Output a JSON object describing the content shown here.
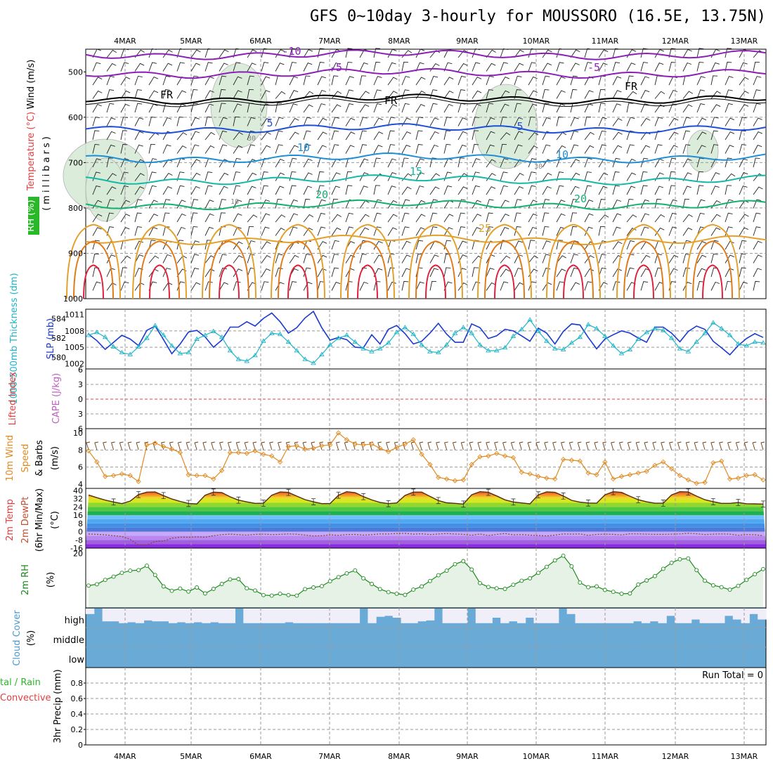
{
  "title": "GFS 0~10day 3-hourly for MOUSSORO (16.5E, 13.75N)",
  "dates": [
    "4MAR",
    "5MAR",
    "6MAR",
    "7MAR",
    "8MAR",
    "9MAR",
    "10MAR",
    "11MAR",
    "12MAR",
    "13MAR"
  ],
  "colors": {
    "purple": "#8b1fb8",
    "black": "#000000",
    "blue": "#1f4ed8",
    "lightblue": "#1f8fd8",
    "teal": "#13b8a8",
    "green": "#13b070",
    "orange": "#e3a02a",
    "darkorange": "#e07a18",
    "red": "#e0203a",
    "rhfill": "#d8ead8",
    "barb": "#000000"
  },
  "chart_data": [
    {
      "type": "line",
      "panel": "upper-air",
      "labels": {
        "wind": "Wind (m/s)",
        "temp": "Temperature (°C)",
        "rh": "RH (%)",
        "pressure": "(millibars)"
      },
      "ylabels": [
        "500",
        "600",
        "700",
        "800",
        "900",
        "1000"
      ],
      "ylim": [
        450,
        1000
      ],
      "contours": [
        {
          "name": "-10",
          "color": "purple",
          "values": [
            -10
          ]
        },
        {
          "name": "-5",
          "color": "purple",
          "values": [
            -5
          ]
        },
        {
          "name": "FR",
          "color": "black",
          "values": [
            0
          ]
        },
        {
          "name": "5",
          "color": "blue",
          "values": [
            5
          ]
        },
        {
          "name": "10",
          "color": "lightblue",
          "values": [
            10
          ]
        },
        {
          "name": "15",
          "color": "teal",
          "values": [
            15
          ]
        },
        {
          "name": "20",
          "color": "green",
          "values": [
            20
          ]
        },
        {
          "name": "25",
          "color": "orange",
          "values": [
            25
          ]
        }
      ],
      "contour_labels": [
        "-10",
        "-5",
        "-5",
        "FR",
        "FR",
        "FR",
        "5",
        "5",
        "10",
        "10",
        "15",
        "20",
        "20",
        "25",
        "30",
        "30",
        "10"
      ],
      "levels": {
        "-10": 462,
        "-5": 503,
        "FR": 560,
        "5": 625,
        "10": 690,
        "15": 738,
        "20": 793,
        "25": 870
      }
    },
    {
      "type": "line",
      "panel": "thickness-slp",
      "labels": {
        "thk": "1000-500mb Thickness (dm)",
        "slp": "SLP (mb)"
      },
      "left_ticks": [
        "584",
        "582",
        "580"
      ],
      "right_ticks": [
        "1011",
        "1008",
        "1005",
        "1002"
      ],
      "series": [
        {
          "name": "SLP",
          "color": "#1a3ad0",
          "values": [
            1007.4,
            1006.2,
            1004.6,
            1005.9,
            1007.2,
            1006.5,
            1005.3,
            1008.1,
            1008.9,
            1006.4,
            1003.8,
            1005.6,
            1007.8,
            1008.1,
            1006.9,
            1005.0,
            1006.3,
            1008.7,
            1008.7,
            1009.7,
            1008.9,
            1010.3,
            1011.3,
            1009.7,
            1007.6,
            1008.6,
            1010.4,
            1011.6,
            1008.6,
            1006.3,
            1006.8,
            1006.4,
            1005.0,
            1004.9,
            1007.3,
            1005.6,
            1008.3,
            1009.0,
            1007.5,
            1005.6,
            1006.1,
            1007.6,
            1009.4,
            1007.4,
            1005.9,
            1005.9,
            1009.3,
            1008.6,
            1006.6,
            1007.1,
            1008.3,
            1008.0,
            1007.1,
            1006.1,
            1008.5,
            1007.6,
            1005.6,
            1007.9,
            1009.3,
            1009.1,
            1006.8,
            1004.7,
            1006.5,
            1007.3,
            1008.0,
            1007.6,
            1006.7,
            1005.9,
            1008.7,
            1008.7,
            1007.6,
            1006.0,
            1007.9,
            1008.9,
            1008.3,
            1006.1,
            1004.9,
            1003.6,
            1005.3,
            1006.6,
            1007.5,
            1006.8
          ]
        },
        {
          "name": "Thickness",
          "color": "#20b5c8",
          "values": [
            582.3,
            582.6,
            582.1,
            581.1,
            580.5,
            580.3,
            581.1,
            582.0,
            583.3,
            582.3,
            581.2,
            580.4,
            580.5,
            581.9,
            582.3,
            582.7,
            582.1,
            580.7,
            579.8,
            579.6,
            580.2,
            581.7,
            582.5,
            582.4,
            581.6,
            580.7,
            579.8,
            579.4,
            580.3,
            581.3,
            582.0,
            582.3,
            581.6,
            580.9,
            580.6,
            580.9,
            581.5,
            582.6,
            583.1,
            582.4,
            581.3,
            580.6,
            580.5,
            581.3,
            582.5,
            583.1,
            582.5,
            581.3,
            580.7,
            580.7,
            581.0,
            582.2,
            582.9,
            583.9,
            582.7,
            581.7,
            580.9,
            580.8,
            581.5,
            582.1,
            583.4,
            583.0,
            582.2,
            581.2,
            580.4,
            580.8,
            581.9,
            582.6,
            583.0,
            582.8,
            582.0,
            580.9,
            580.6,
            581.6,
            582.5,
            583.6,
            583.0,
            582.3,
            581.4,
            581.2,
            581.6,
            581.5
          ]
        }
      ]
    },
    {
      "type": "line",
      "panel": "cape-li",
      "labels": {
        "li": "Lifted Index",
        "cape": "CAPE (J/kg)"
      },
      "ticks": [
        "6",
        "3",
        "0",
        "3",
        "6"
      ],
      "series": [
        {
          "name": "Lifted Index",
          "color": "#e04040",
          "values": [
            0
          ]
        }
      ]
    },
    {
      "type": "line",
      "panel": "wind10m",
      "labels": {
        "title": "10m Wind",
        "speed": "Speed",
        "barbs": "& Barbs",
        "unit": "(m/s)"
      },
      "ticks": [
        "10",
        "8",
        "6",
        "4"
      ],
      "ylim": [
        3.5,
        10.5
      ],
      "series": [
        {
          "name": "10m Wind Speed",
          "color": "#e08a20",
          "values": [
            7.9,
            6.6,
            4.9,
            5.0,
            5.2,
            5.0,
            4.3,
            8.6,
            8.8,
            8.4,
            8.1,
            7.7,
            5.1,
            5.0,
            5.0,
            4.6,
            5.6,
            7.7,
            7.7,
            7.6,
            7.9,
            7.5,
            7.3,
            6.6,
            8.4,
            8.5,
            8.1,
            8.2,
            8.5,
            8.6,
            10.0,
            9.2,
            8.7,
            8.6,
            8.7,
            8.2,
            7.8,
            8.3,
            8.7,
            9.2,
            7.5,
            6.3,
            4.8,
            4.6,
            4.4,
            4.5,
            6.3,
            7.2,
            7.3,
            7.6,
            7.3,
            7.1,
            5.4,
            5.2,
            4.9,
            4.7,
            4.6,
            6.9,
            6.8,
            6.7,
            5.3,
            5.1,
            6.6,
            4.6,
            4.9,
            5.1,
            5.3,
            5.5,
            6.2,
            6.6,
            5.8,
            5.0,
            4.5,
            4.1,
            4.2,
            6.5,
            6.7,
            4.6,
            4.7,
            5.0,
            5.1,
            4.5
          ]
        }
      ]
    },
    {
      "type": "area",
      "panel": "temp2m",
      "labels": {
        "temp": "2m Temp",
        "dew": "2m DewPt",
        "minmax": "(6hr Min/Max)",
        "unit": "(°C)"
      },
      "ticks": [
        "40",
        "32",
        "24",
        "16",
        "8",
        "0",
        "-8",
        "-16"
      ],
      "ylim": [
        -16,
        42
      ],
      "series": [
        {
          "name": "2m Temp",
          "color": "#5a2a0a",
          "values": [
            35.6,
            33.0,
            30.6,
            28.8,
            27.2,
            29.7,
            36.0,
            38.4,
            38.5,
            35.0,
            31.7,
            29.4,
            27.4,
            26.9,
            35.4,
            38.4,
            38.0,
            33.8,
            30.6,
            28.9,
            27.5,
            27.6,
            35.4,
            38.5,
            38.1,
            34.5,
            31.1,
            29.0,
            27.2,
            27.3,
            35.4,
            38.8,
            37.9,
            34.0,
            30.8,
            28.4,
            27.2,
            27.9,
            35.2,
            38.4,
            38.4,
            34.2,
            30.2,
            28.0,
            27.5,
            26.8,
            35.8,
            38.8,
            38.2,
            34.7,
            30.9,
            28.8,
            27.9,
            27.0,
            35.7,
            38.6,
            38.2,
            34.6,
            30.4,
            28.6,
            27.8,
            27.6,
            35.7,
            38.8,
            38.1,
            34.4,
            31.0,
            29.0,
            27.6,
            27.7,
            35.6,
            38.8,
            38.5,
            34.5,
            31.0,
            29.1,
            27.5,
            27.5,
            28.3,
            27.1,
            27.0,
            26.8
          ]
        },
        {
          "name": "2m DewPt",
          "color": "#8a4a20",
          "values": [
            -2.3,
            -2.6,
            -3.1,
            -3.9,
            -4.7,
            -7.5,
            -13.0,
            -12.9,
            -9.5,
            -9.1,
            -6.4,
            -5.3,
            -5.4,
            -5.1,
            -5.4,
            -3.9,
            -2.9,
            -2.4,
            -2.9,
            -3.4,
            -2.6,
            -2.4,
            -2.8,
            -2.6,
            -2.2,
            -2.5,
            -3.3,
            -4.1,
            -3.9,
            -3.1,
            -3.6,
            -2.8,
            -2.7,
            -3.4,
            -2.9,
            -2.2,
            -2.3,
            -1.8,
            -1.7,
            -2.4,
            -2.1,
            -2.8,
            -2.3,
            -1.9,
            -2.3,
            -2.6,
            -3.5,
            -2.3,
            -3.8,
            -2.7,
            -1.8,
            -3.1,
            -2.8,
            -3.4,
            -3.7,
            -4.1,
            -3.3,
            -2.2,
            -2.4,
            -2.2,
            -3.6,
            -2.7,
            -2.4,
            -2.6,
            -3.2,
            -2.1,
            -2.2,
            -2.4,
            -2.6,
            -2.6,
            -2.4,
            -2.2,
            -1.6,
            -2.1,
            -2.8,
            -2.4,
            -2.2,
            -2.4,
            -3.5,
            -2.8,
            -3.0,
            -3.9
          ]
        }
      ]
    },
    {
      "type": "area",
      "panel": "rh2m",
      "labels": {
        "rh": "2m RH",
        "unit": "(%)"
      },
      "ticks": [
        "20"
      ],
      "ylim": [
        0,
        22
      ],
      "series": [
        {
          "name": "2m RH",
          "color": "#1a8a1a",
          "values": [
            8.2,
            8.7,
            10.3,
            11.5,
            12.9,
            13.7,
            13.9,
            15.5,
            12.1,
            7.9,
            6.3,
            7.1,
            6.0,
            7.5,
            5.3,
            7.0,
            8.8,
            10.5,
            10.6,
            7.2,
            6.4,
            4.7,
            4.5,
            5.2,
            4.7,
            4.5,
            6.9,
            7.5,
            8.0,
            9.8,
            11.3,
            12.7,
            13.8,
            10.9,
            8.8,
            6.9,
            5.8,
            5.2,
            4.8,
            6.7,
            7.9,
            9.9,
            12.0,
            13.7,
            16.1,
            17.2,
            14.1,
            9.1,
            7.7,
            7.2,
            7.0,
            8.5,
            10.0,
            10.9,
            12.9,
            15.1,
            17.5,
            19.2,
            15.3,
            9.3,
            7.6,
            7.9,
            6.6,
            5.9,
            5.2,
            5.3,
            8.6,
            10.1,
            11.7,
            14.4,
            16.6,
            17.9,
            18.2,
            13.9,
            10.0,
            8.3,
            7.6,
            6.7,
            8.1,
            10.3,
            12.4,
            14.3
          ]
        }
      ]
    },
    {
      "type": "bar",
      "panel": "cloud",
      "labels": {
        "title": "Cloud Cover",
        "unit": "(%)",
        "high": "high",
        "middle": "middle",
        "low": "low"
      },
      "series": [
        {
          "name": "high cloud",
          "color": "#6aaad6",
          "values": [
            70,
            100,
            30,
            30,
            20,
            25,
            20,
            35,
            30,
            30,
            20,
            25,
            20,
            25,
            20,
            25,
            20,
            20,
            100,
            20,
            20,
            20,
            20,
            20,
            25,
            20,
            20,
            20,
            20,
            20,
            20,
            20,
            20,
            100,
            20,
            55,
            60,
            50,
            20,
            20,
            30,
            35,
            100,
            20,
            20,
            20,
            100,
            20,
            20,
            50,
            20,
            30,
            20,
            50,
            20,
            20,
            20,
            100,
            70,
            20,
            20,
            20,
            20,
            20,
            20,
            20,
            30,
            20,
            30,
            20,
            60,
            20,
            20,
            40,
            20,
            20,
            20,
            60,
            40,
            20,
            70,
            40
          ]
        }
      ]
    },
    {
      "type": "bar",
      "panel": "precip",
      "labels": {
        "left1": "tal / Rain",
        "left2": "Convective",
        "axis": "3hr Precip (mm)",
        "total": "Run Total = 0"
      },
      "ticks": [
        "0.8",
        "0.6",
        "0.4",
        "0.2",
        "0"
      ],
      "ylim": [
        0,
        1
      ],
      "series": [
        {
          "name": "3hr Precip",
          "values": [
            0
          ]
        }
      ]
    }
  ]
}
